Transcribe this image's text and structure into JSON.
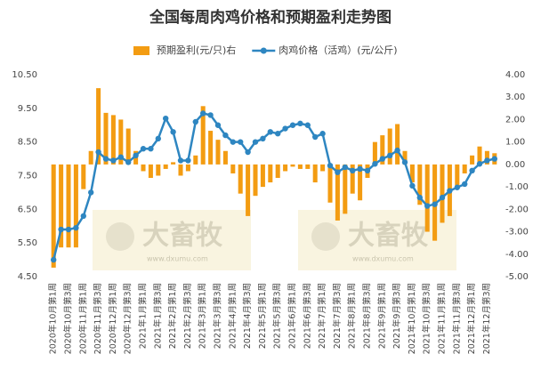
{
  "chart_data": {
    "type": "bar-line",
    "title": "全国每周肉鸡价格和预期盈利走势图",
    "categories": [
      "2020年10月第1周",
      null,
      "2020年10月第3周",
      null,
      "2020年11月第1周",
      null,
      "2020年11月第3周",
      null,
      "2020年12月第1周",
      null,
      "2020年12月第3周",
      null,
      "2021年1月第1周",
      null,
      "2021年1月第3周",
      null,
      "2021年2月第1周",
      null,
      "2021年2月第3周",
      null,
      "2021年3月第1周",
      null,
      "2021年3月第3周",
      null,
      "2021年4月第1周",
      null,
      "2021年4月第3周",
      null,
      "2021年5月第1周",
      null,
      "2021年5月第3周",
      null,
      "2021年6月第1周",
      null,
      "2021年6月第3周",
      null,
      "2021年7月第1周",
      null,
      "2021年7月第3周",
      null,
      "2021年8月第1周",
      null,
      "2021年8月第3周",
      null,
      "2021年9月第1周",
      null,
      "2021年9月第3周",
      null,
      "2021年10月第1周",
      null,
      "2021年10月第3周",
      null,
      "2021年11月第1周",
      null,
      "2021年11月第3周",
      null,
      "2021年12月第1周",
      null,
      "2021年12月第3周",
      null
    ],
    "series": [
      {
        "name": "预期盈利(元/只)右",
        "type": "bar",
        "axis": "y2",
        "color": "#f39c12",
        "values": [
          -4.6,
          -3.7,
          -3.7,
          -3.7,
          -1.1,
          0.6,
          3.4,
          2.3,
          2.2,
          2.0,
          1.6,
          0.6,
          -0.3,
          -0.6,
          -0.5,
          -0.2,
          0.1,
          -0.5,
          -0.3,
          0.4,
          2.6,
          1.5,
          1.1,
          0.6,
          -0.4,
          -1.3,
          -2.3,
          -1.4,
          -1.0,
          -0.8,
          -0.6,
          -0.3,
          -0.1,
          -0.2,
          -0.2,
          -0.8,
          -0.3,
          -1.7,
          -2.5,
          -2.2,
          -1.3,
          -1.6,
          -0.6,
          1.0,
          1.3,
          1.6,
          1.8,
          0.6,
          -0.8,
          -1.8,
          -3.0,
          -3.4,
          -2.6,
          -2.3,
          -1.0,
          -0.4,
          0.4,
          0.8,
          0.6,
          0.5
        ]
      },
      {
        "name": "肉鸡价格（活鸡）(元/公斤)",
        "type": "line",
        "axis": "y",
        "color": "#2e86c1",
        "values": [
          5.0,
          5.9,
          5.9,
          5.95,
          6.3,
          7.0,
          8.2,
          8.0,
          7.95,
          8.05,
          7.9,
          8.1,
          8.3,
          8.3,
          8.6,
          9.2,
          8.8,
          7.95,
          7.95,
          9.1,
          9.35,
          9.3,
          9.0,
          8.7,
          8.5,
          8.5,
          8.2,
          8.5,
          8.6,
          8.8,
          8.75,
          8.9,
          9.0,
          9.05,
          9.0,
          8.65,
          8.75,
          7.8,
          7.6,
          7.75,
          7.65,
          7.7,
          7.65,
          7.85,
          8.0,
          8.1,
          8.25,
          7.9,
          7.2,
          6.85,
          6.6,
          6.65,
          6.85,
          7.05,
          7.15,
          7.25,
          7.65,
          7.85,
          7.95,
          8.0
        ]
      }
    ],
    "ylim": [
      4.5,
      10.5
    ],
    "yticks": [
      {
        "value": 4.5,
        "label": "4.50"
      },
      {
        "value": 5.5,
        "label": "5.50"
      },
      {
        "value": 6.5,
        "label": "6.50"
      },
      {
        "value": 7.5,
        "label": "7.50"
      },
      {
        "value": 8.5,
        "label": "8.50"
      },
      {
        "value": 9.5,
        "label": "9.50"
      },
      {
        "value": 10.5,
        "label": "10.50"
      }
    ],
    "y2lim": [
      -5,
      4
    ],
    "y2ticks": [
      {
        "value": -5,
        "label": "-5.00"
      },
      {
        "value": -4,
        "label": "-4.00"
      },
      {
        "value": -3,
        "label": "-3.00"
      },
      {
        "value": -2,
        "label": "-2.00"
      },
      {
        "value": -1,
        "label": "-1.00"
      },
      {
        "value": 0,
        "label": "0.00"
      },
      {
        "value": 1,
        "label": "1.00"
      },
      {
        "value": 2,
        "label": "2.00"
      },
      {
        "value": 3,
        "label": "3.00"
      },
      {
        "value": 4,
        "label": "4.00"
      }
    ],
    "watermark": {
      "brand": "大畜牧",
      "url": "www.dxumu.com"
    }
  }
}
